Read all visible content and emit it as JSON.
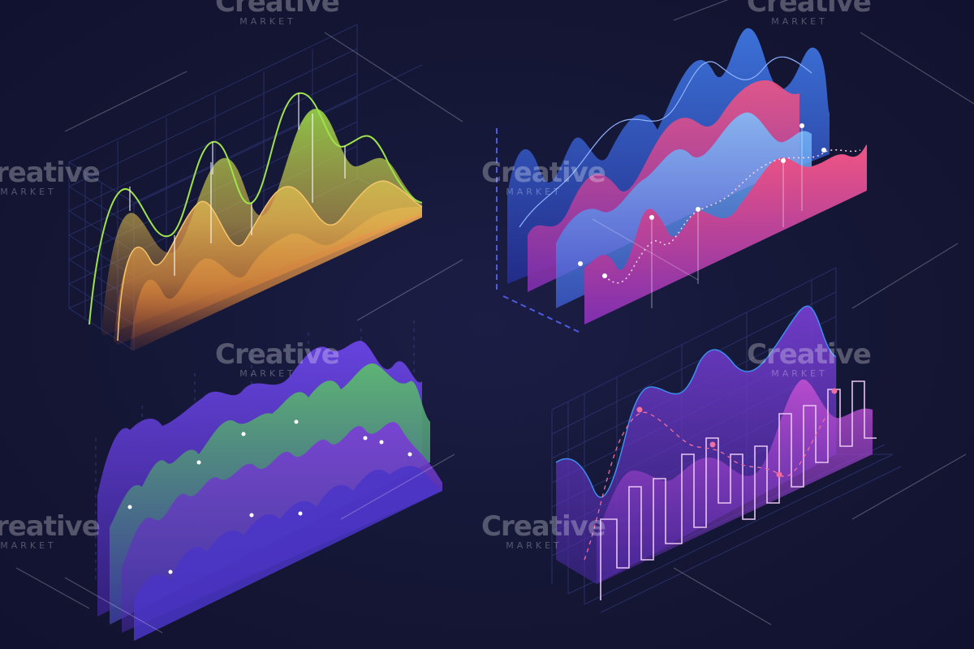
{
  "watermark": {
    "brand": "Creative",
    "sub": "MARKET"
  }
}
